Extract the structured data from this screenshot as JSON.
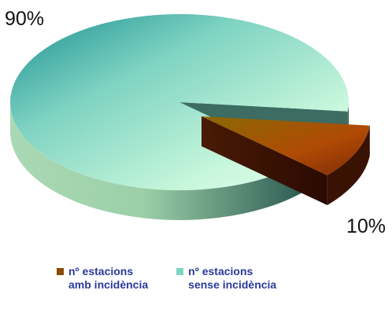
{
  "chart_data": {
    "type": "pie",
    "title": "",
    "slices": [
      {
        "label": [
          "nº estacions",
          "amb incidència"
        ],
        "value": 10,
        "data_label": "10%",
        "color": "#8a4a05",
        "exploded": true
      },
      {
        "label": [
          "nº estacions",
          "sense incidència"
        ],
        "value": 90,
        "data_label": "90%",
        "color": "#7fd6c6",
        "exploded": false
      }
    ],
    "legend_position": "bottom",
    "style": "3d-exploded"
  }
}
